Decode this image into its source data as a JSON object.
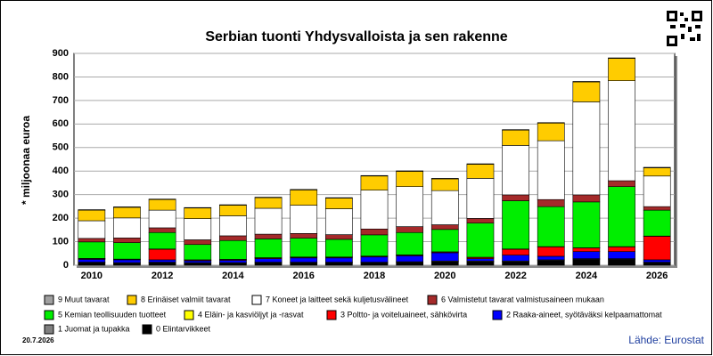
{
  "chart_data": {
    "type": "stacked_bar",
    "title": "Serbian tuonti Yhdysvalloista ja sen rakenne",
    "y_label": "* miljoonaa euroa",
    "date": "20.7.2026",
    "source": "Lähde: Eurostat",
    "categories": [
      "2010",
      null,
      "2012",
      null,
      "2014",
      null,
      "2016",
      null,
      "2018",
      null,
      "2020",
      null,
      "2022",
      null,
      "2024",
      null,
      "2026"
    ],
    "ylim": [
      0,
      900
    ],
    "yticks": [
      0,
      100,
      200,
      300,
      400,
      500,
      600,
      700,
      800,
      900
    ],
    "grid": true,
    "series": [
      {
        "name": "0 Elintarvikkeet",
        "color": "#000000",
        "values": [
          10,
          8,
          10,
          8,
          8,
          10,
          10,
          10,
          10,
          12,
          15,
          15,
          15,
          20,
          25,
          25,
          10
        ]
      },
      {
        "name": "1 Juomat ja tupakka",
        "color": "#808080",
        "values": [
          3,
          3,
          3,
          3,
          3,
          3,
          3,
          3,
          3,
          3,
          3,
          3,
          3,
          3,
          3,
          3,
          3
        ]
      },
      {
        "name": "2 Raaka-aineet, syötäväksi kelpaamattomat",
        "color": "#0000ff",
        "values": [
          12,
          12,
          10,
          8,
          10,
          15,
          18,
          18,
          22,
          25,
          35,
          10,
          25,
          15,
          30,
          30,
          10
        ]
      },
      {
        "name": "3 Poltto- ja voiteluaineet, sähkövirta",
        "color": "#ff0000",
        "values": [
          3,
          2,
          45,
          3,
          3,
          3,
          3,
          3,
          3,
          3,
          3,
          5,
          25,
          40,
          15,
          20,
          100
        ]
      },
      {
        "name": "4 Eläin- ja kasviöljyt ja -rasvat",
        "color": "#ffff00",
        "values": [
          1,
          1,
          1,
          1,
          1,
          1,
          1,
          1,
          1,
          1,
          1,
          1,
          1,
          1,
          1,
          1,
          1
        ]
      },
      {
        "name": "5 Kemian teollisuuden tuotteet",
        "color": "#00ee00",
        "values": [
          70,
          70,
          70,
          65,
          80,
          80,
          80,
          75,
          90,
          95,
          95,
          145,
          205,
          170,
          195,
          255,
          110
        ]
      },
      {
        "name": "6 Valmistetut tavarat valmistusaineen mukaan",
        "color": "#a52a2a",
        "values": [
          15,
          20,
          20,
          20,
          20,
          20,
          20,
          20,
          25,
          25,
          20,
          20,
          25,
          30,
          30,
          25,
          15
        ]
      },
      {
        "name": "7 Koneet ja laitteet sekä kuljetusvälineet",
        "color": "#ffffff",
        "values": [
          75,
          85,
          75,
          90,
          85,
          110,
          120,
          110,
          165,
          170,
          145,
          170,
          210,
          250,
          395,
          425,
          130
        ]
      },
      {
        "name": "8 Erinäiset valmiit tavarat",
        "color": "#ffcc00",
        "values": [
          45,
          45,
          45,
          45,
          45,
          45,
          65,
          45,
          60,
          65,
          50,
          60,
          65,
          75,
          85,
          95,
          35
        ]
      },
      {
        "name": "9 Muut tavarat",
        "color": "#a0a0a0",
        "values": [
          2,
          2,
          2,
          2,
          2,
          2,
          2,
          2,
          2,
          2,
          2,
          2,
          2,
          2,
          2,
          2,
          2
        ]
      }
    ]
  }
}
